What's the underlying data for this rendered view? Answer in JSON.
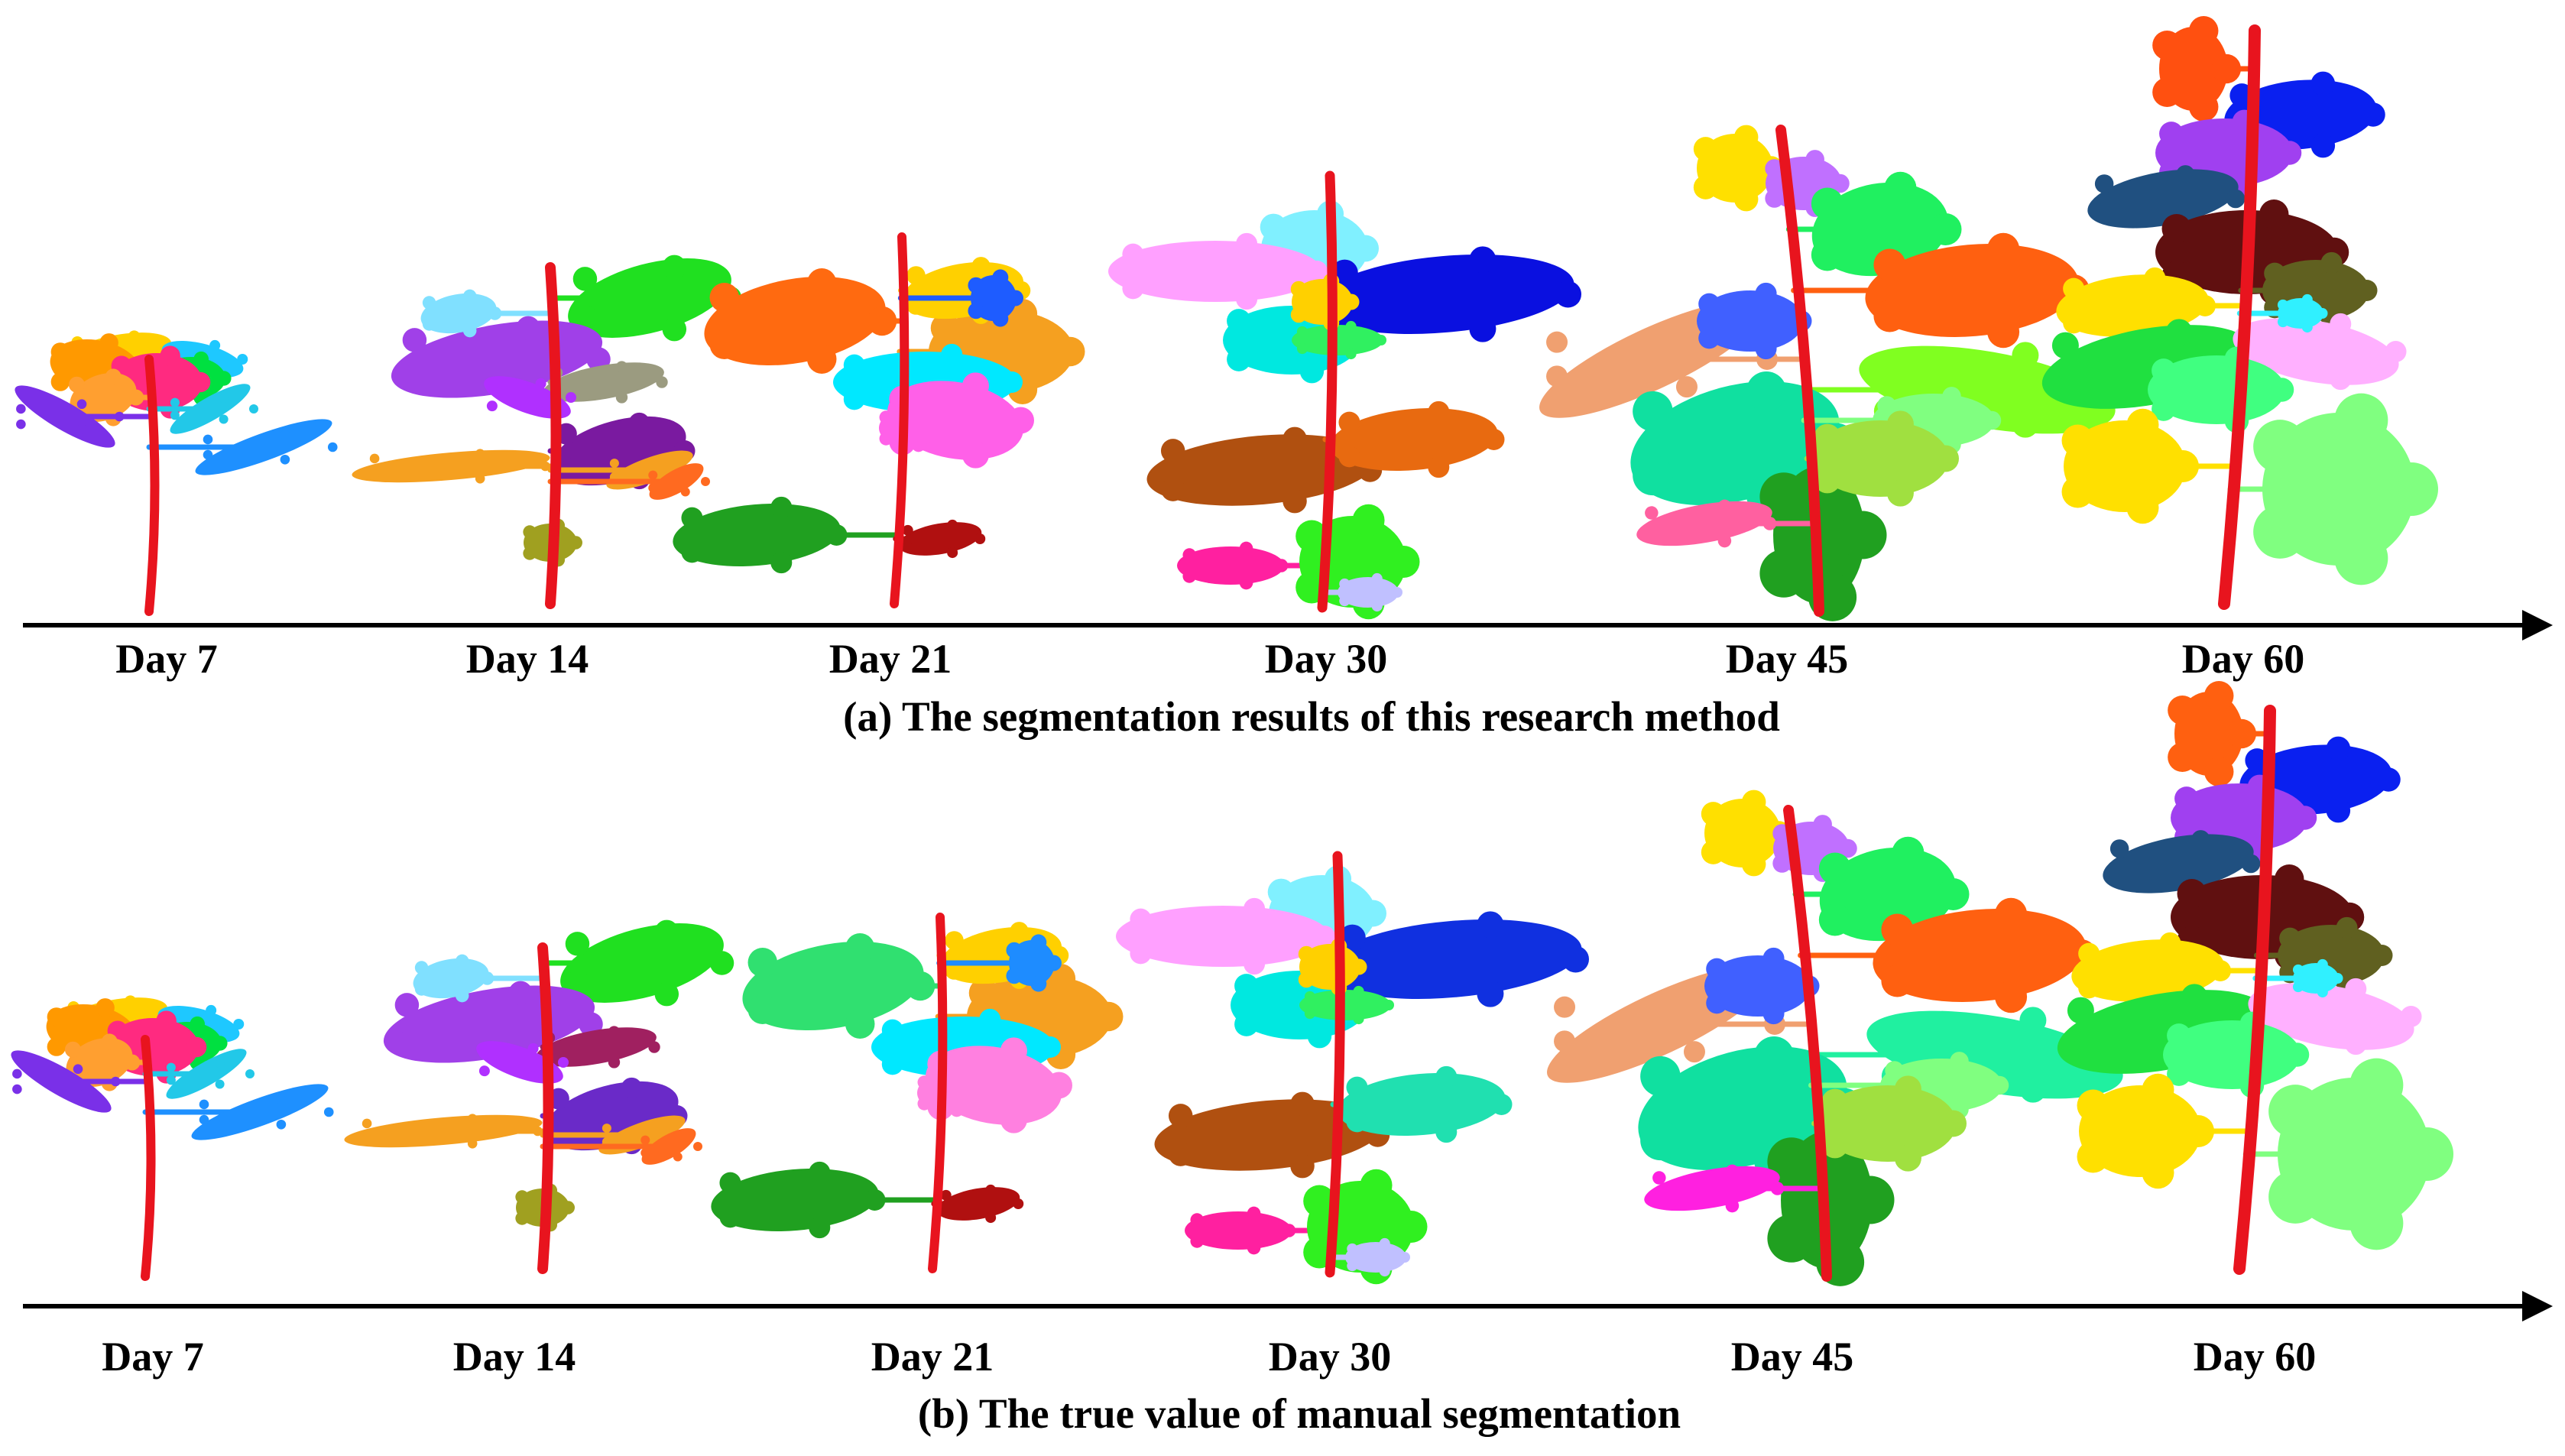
{
  "figure": {
    "panels": [
      {
        "id": "a",
        "caption": "(a) The segmentation results of this research method",
        "days": [
          "Day 7",
          "Day 14",
          "Day 21",
          "Day 30",
          "Day 45",
          "Day 60"
        ],
        "plants": [
          {
            "day": 7,
            "stem_color": "#e8141e",
            "organs": [
              "#ffd000",
              "#ff9900",
              "#1ec8ff",
              "#00e040",
              "#ff2a80",
              "#ff9f30",
              "#7a30e8",
              "#1e90ff",
              "#22c8e8"
            ]
          },
          {
            "day": 14,
            "stem_color": "#e8141e",
            "organs": [
              "#20e020",
              "#a040e8",
              "#80e0ff",
              "#9b9b80",
              "#7a1aa0",
              "#f5a020",
              "#f5a020",
              "#ff6a20",
              "#a0a020",
              "#b030ff"
            ]
          },
          {
            "day": 21,
            "stem_color": "#e8141e",
            "organs": [
              "#ff6a10",
              "#f5a020",
              "#00e8ff",
              "#ff60e8",
              "#20a020",
              "#b01010",
              "#ffd000",
              "#1e5cff",
              "#ff60e8"
            ]
          },
          {
            "day": 30,
            "stem_color": "#e8141e",
            "organs": [
              "#80f0ff",
              "#ffa0ff",
              "#00e8e0",
              "#0a10e0",
              "#b05010",
              "#e86a10",
              "#ff20a0",
              "#30f020",
              "#c0c0ff",
              "#30f060",
              "#ffd000"
            ]
          },
          {
            "day": 45,
            "stem_color": "#e8141e",
            "organs": [
              "#ffe000",
              "#c070ff",
              "#20f060",
              "#ff6010",
              "#f0a070",
              "#4060ff",
              "#80ff20",
              "#10e0a0",
              "#20a020",
              "#ff60a0",
              "#80ff80",
              "#a0e040"
            ]
          },
          {
            "day": 60,
            "stem_color": "#e8141e",
            "organs": [
              "#ff5010",
              "#0a20f0",
              "#a040f0",
              "#205080",
              "#601010",
              "#606020",
              "#ffe000",
              "#20e040",
              "#ffb0ff",
              "#40ff80",
              "#ffe000",
              "#80ff80",
              "#30f0ff"
            ]
          }
        ]
      },
      {
        "id": "b",
        "caption": "(b) The true value of manual segmentation",
        "days": [
          "Day 7",
          "Day 14",
          "Day 21",
          "Day 30",
          "Day 45",
          "Day 60"
        ],
        "plants": [
          {
            "day": 7,
            "stem_color": "#e8141e",
            "organs": [
              "#ffd000",
              "#ff9900",
              "#1ec8ff",
              "#00e040",
              "#ff2a80",
              "#ff9f30",
              "#7a30e8",
              "#1e90ff",
              "#22c8e8"
            ]
          },
          {
            "day": 14,
            "stem_color": "#e8141e",
            "organs": [
              "#20e020",
              "#a040e8",
              "#80e0ff",
              "#a02060",
              "#6a2ac8",
              "#f5a020",
              "#f5a020",
              "#ff6a20",
              "#a0a020",
              "#b030ff"
            ]
          },
          {
            "day": 21,
            "stem_color": "#e8141e",
            "organs": [
              "#30e070",
              "#f5a020",
              "#00e8ff",
              "#ff80e0",
              "#20a020",
              "#b01010",
              "#ffd000",
              "#1e8cff",
              "#ff80e0"
            ]
          },
          {
            "day": 30,
            "stem_color": "#e8141e",
            "organs": [
              "#80f0ff",
              "#ffa0ff",
              "#00e8e0",
              "#1030e0",
              "#b05010",
              "#20e0b0",
              "#ff20a0",
              "#30f020",
              "#c0c0ff",
              "#30f060",
              "#ffd000"
            ]
          },
          {
            "day": 45,
            "stem_color": "#e8141e",
            "organs": [
              "#ffe000",
              "#c070ff",
              "#20f060",
              "#ff6010",
              "#f0a070",
              "#4060ff",
              "#20f0a0",
              "#10e0a0",
              "#20a020",
              "#ff20e0",
              "#80ff80",
              "#a0e040"
            ]
          },
          {
            "day": 60,
            "stem_color": "#e8141e",
            "organs": [
              "#ff6010",
              "#0a20f0",
              "#a040f0",
              "#205080",
              "#601010",
              "#606020",
              "#ffe000",
              "#20e040",
              "#ffb0ff",
              "#40ff80",
              "#ffe000",
              "#80ff80",
              "#30f0ff"
            ]
          }
        ]
      }
    ],
    "axis_color": "#000000"
  }
}
